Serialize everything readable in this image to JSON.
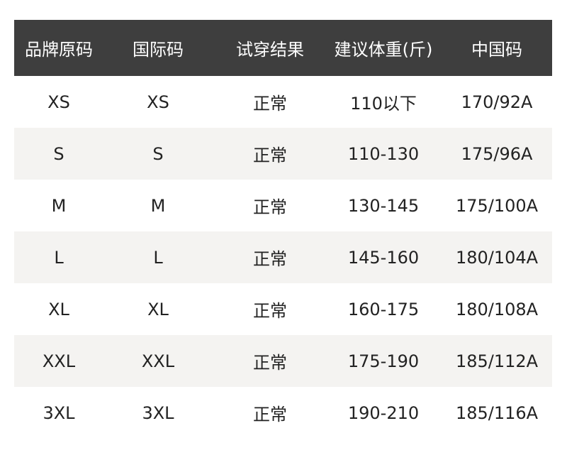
{
  "headers": [
    "品牌原码",
    "国际码",
    "试穿结果",
    "建议体重(斤)",
    "中国码"
  ],
  "rows": [
    [
      "XS",
      "XS",
      "正常",
      "110以下",
      "170/92A"
    ],
    [
      "S",
      "S",
      "正常",
      "110-130",
      "175/96A"
    ],
    [
      "M",
      "M",
      "正常",
      "130-145",
      "175/100A"
    ],
    [
      "L",
      "L",
      "正常",
      "145-160",
      "180/104A"
    ],
    [
      "XL",
      "XL",
      "正常",
      "160-175",
      "180/108A"
    ],
    [
      "XXL",
      "XXL",
      "正常",
      "175-190",
      "185/112A"
    ],
    [
      "3XL",
      "3XL",
      "正常",
      "190-210",
      "185/116A"
    ]
  ],
  "colors": {
    "header_bg": "#3e3e3e",
    "header_text": "#ffffff",
    "alt_row_bg": "#f4f3f1"
  }
}
